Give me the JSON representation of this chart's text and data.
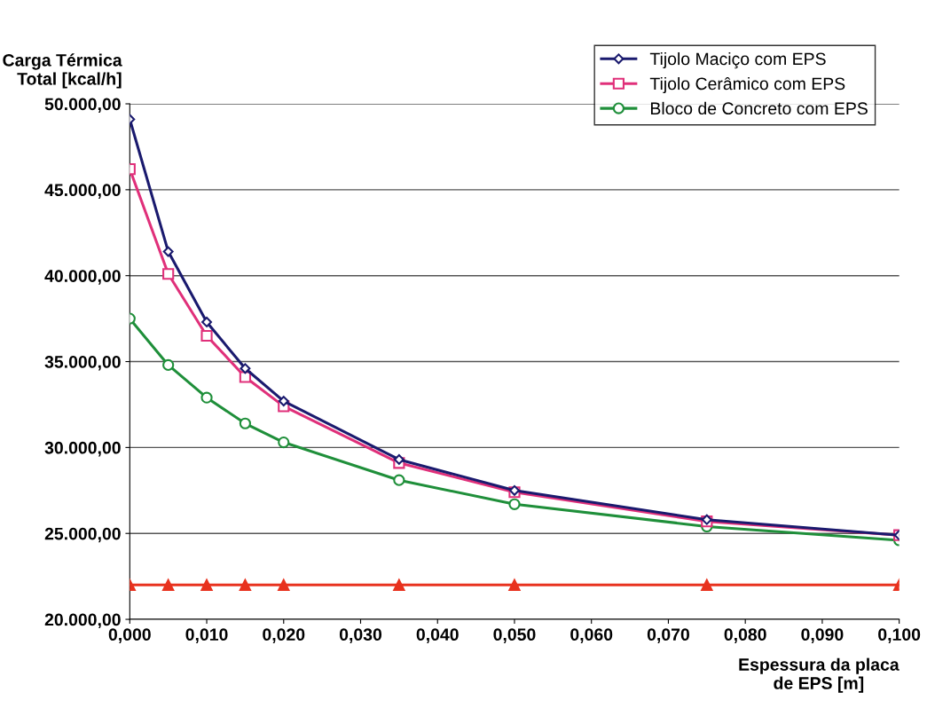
{
  "chart_data": {
    "type": "line",
    "xlabel": "Espessura da placa\nde EPS [m]",
    "ylabel": "Carga Térmica\nTotal [kcal/h]",
    "x": [
      0,
      0.005,
      0.01,
      0.015,
      0.02,
      0.035,
      0.05,
      0.075,
      0.1
    ],
    "series": [
      {
        "name": "Tijolo Maciço com EPS",
        "color": "#1a1a6e",
        "marker": "diamond",
        "values": [
          49100,
          41400,
          37300,
          34600,
          32700,
          29300,
          27500,
          25800,
          24900
        ]
      },
      {
        "name": "Tijolo Cerâmico com EPS",
        "color": "#e0307a",
        "marker": "square",
        "values": [
          46200,
          40100,
          36500,
          34100,
          32400,
          29100,
          27400,
          25700,
          24900
        ]
      },
      {
        "name": "Bloco de Concreto com EPS",
        "color": "#1f8f3a",
        "marker": "circle",
        "values": [
          37500,
          34800,
          32900,
          31400,
          30300,
          28100,
          26700,
          25400,
          24600
        ]
      },
      {
        "color": "#e8321e",
        "marker": "triangle",
        "values": [
          22000,
          22000,
          22000,
          22000,
          22000,
          22000,
          22000,
          22000,
          22000
        ]
      }
    ],
    "xlim": [
      0,
      0.1
    ],
    "xticks": [
      {
        "value": 0,
        "label": "0,000"
      },
      {
        "value": 0.01,
        "label": "0,010"
      },
      {
        "value": 0.02,
        "label": "0,020"
      },
      {
        "value": 0.03,
        "label": "0,030"
      },
      {
        "value": 0.04,
        "label": "0,040"
      },
      {
        "value": 0.05,
        "label": "0,050"
      },
      {
        "value": 0.06,
        "label": "0,060"
      },
      {
        "value": 0.07,
        "label": "0,070"
      },
      {
        "value": 0.08,
        "label": "0,080"
      },
      {
        "value": 0.09,
        "label": "0,090"
      },
      {
        "value": 0.1,
        "label": "0,100"
      }
    ],
    "ylim": [
      20000,
      50000
    ],
    "yticks": [
      {
        "value": 20000,
        "label": "20.000,00"
      },
      {
        "value": 25000,
        "label": "25.000,00"
      },
      {
        "value": 30000,
        "label": "30.000,00"
      },
      {
        "value": 35000,
        "label": "35.000,00"
      },
      {
        "value": 40000,
        "label": "40.000,00"
      },
      {
        "value": 45000,
        "label": "45.000,00"
      },
      {
        "value": 50000,
        "label": "50.000,00"
      }
    ],
    "grid": "y",
    "legend": "top right",
    "line_style": "solid"
  }
}
